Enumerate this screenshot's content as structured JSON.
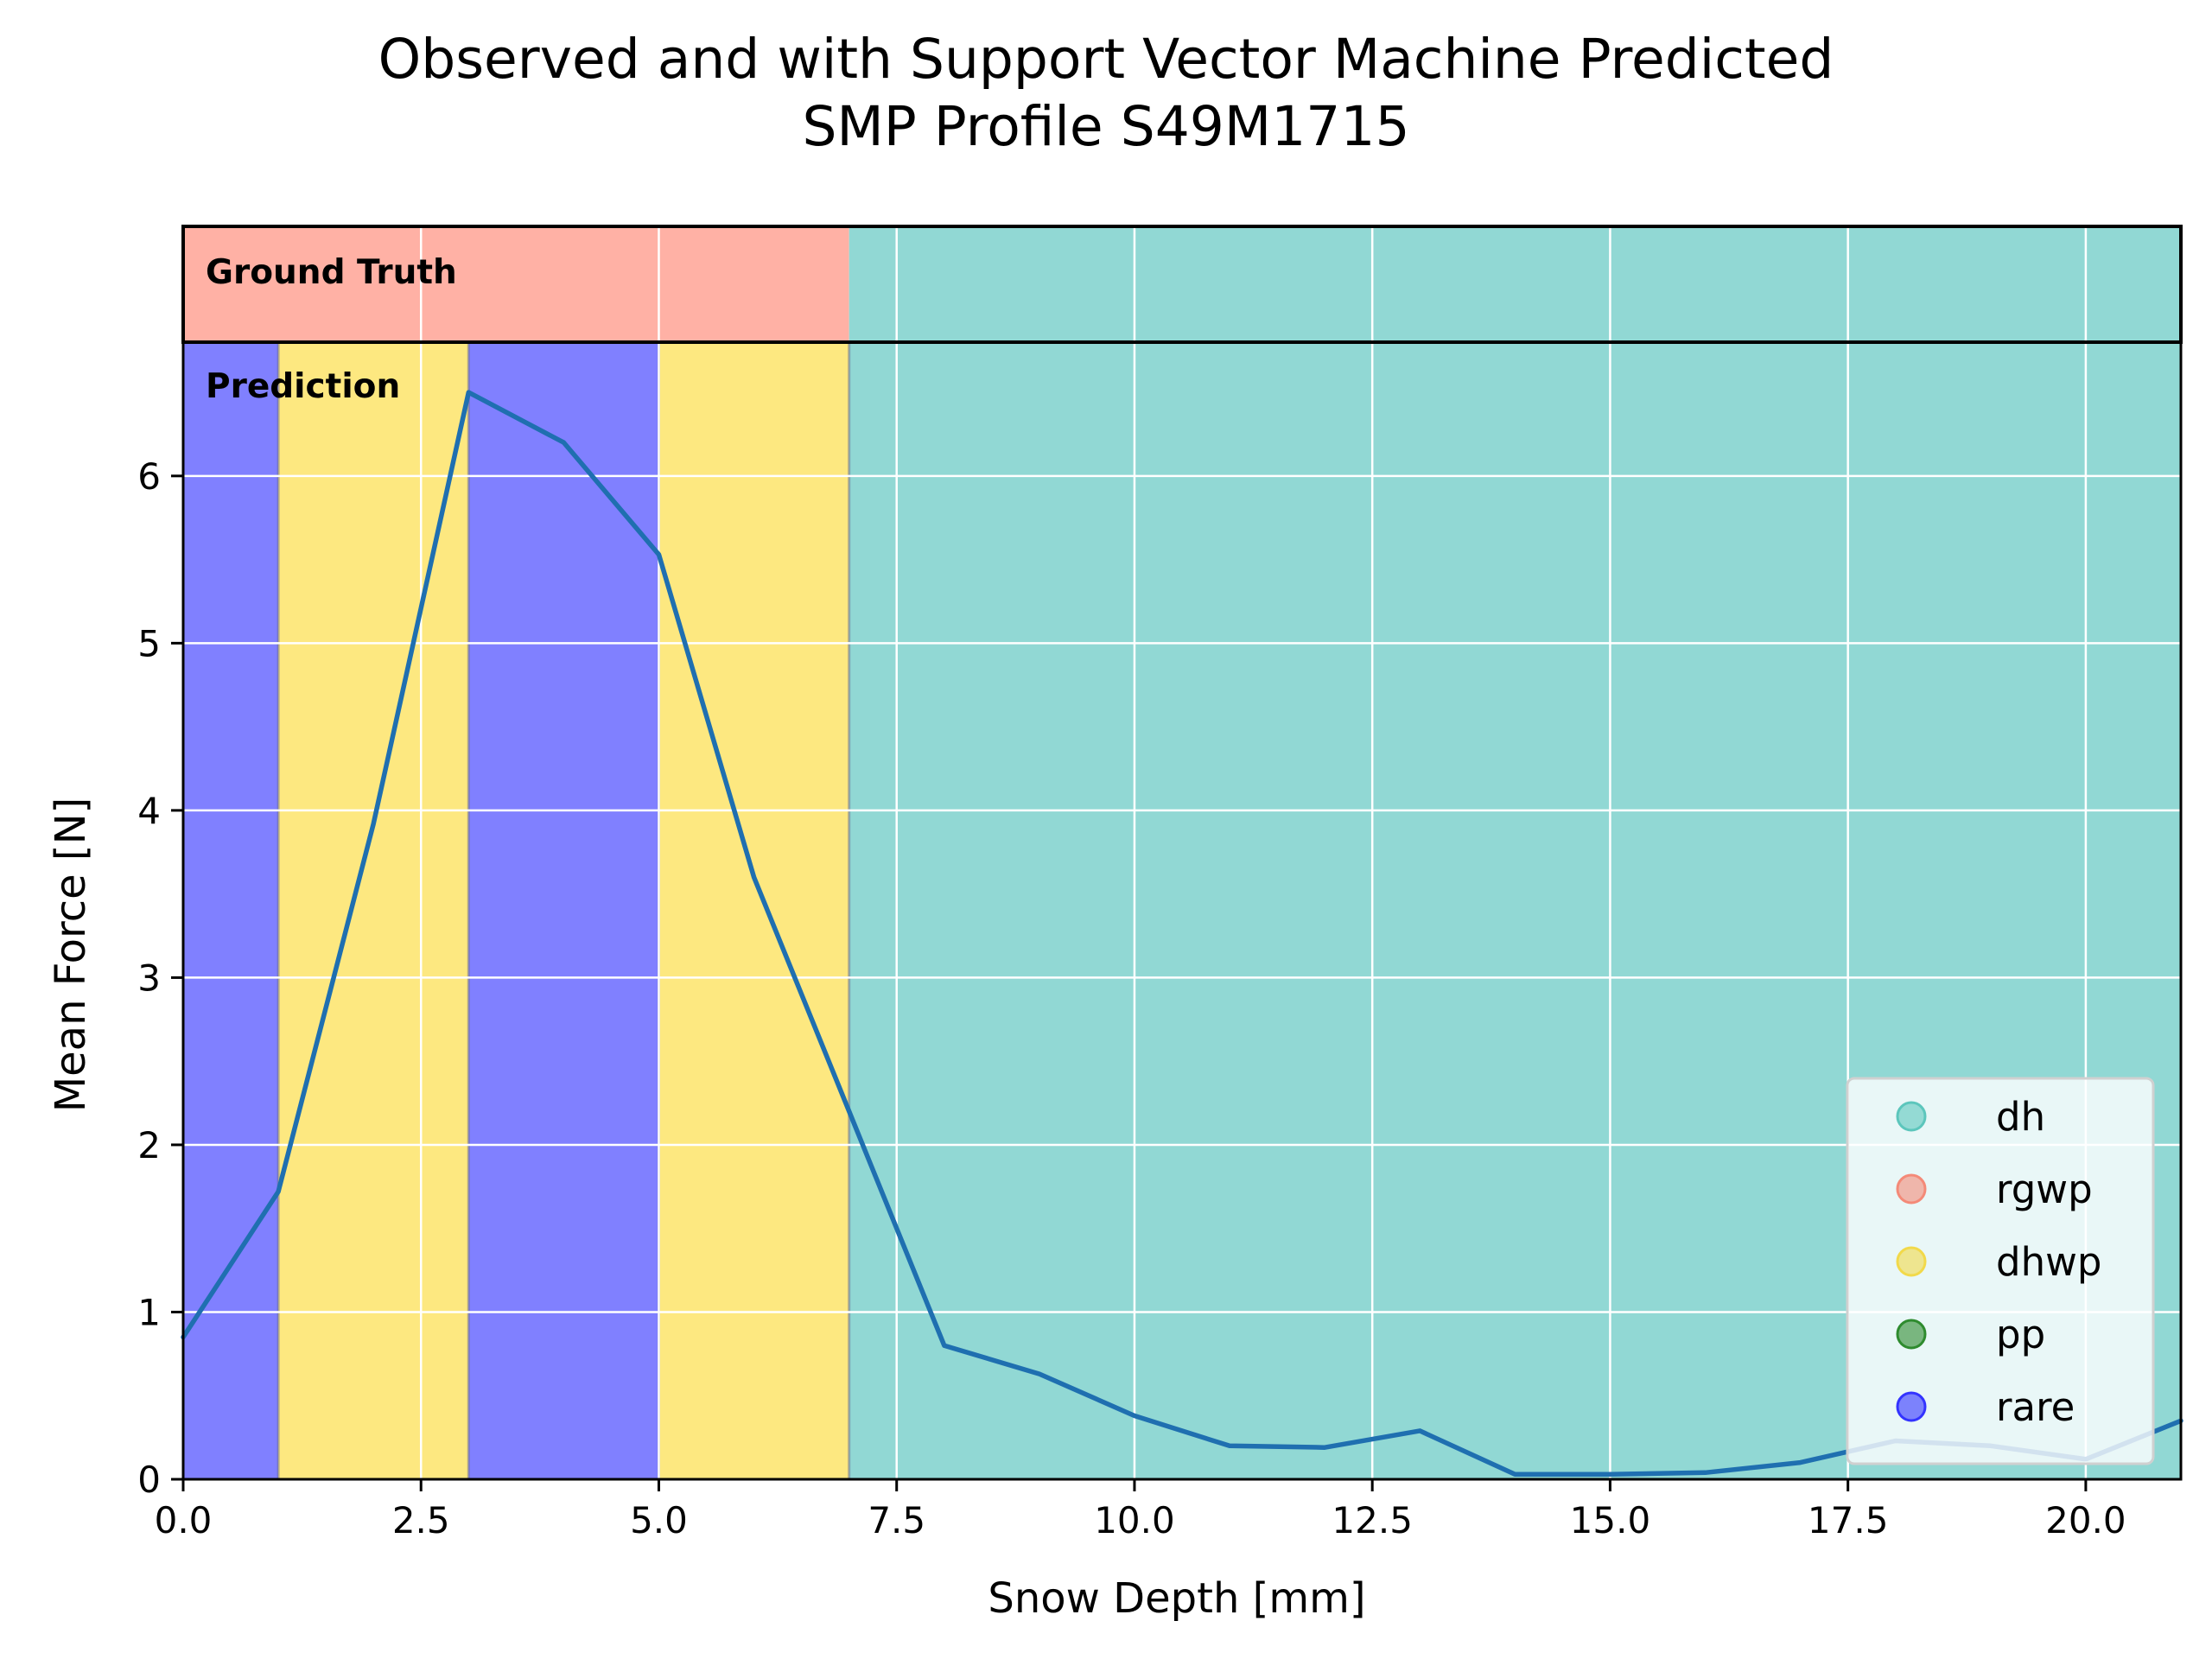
{
  "chart_data": {
    "type": "line",
    "title": "Observed and with Support Vector Machine Predicted",
    "subtitle": "SMP Profile S49M1715",
    "xlabel": "Snow Depth [mm]",
    "ylabel": "Mean Force [N]",
    "xlim": [
      0,
      21
    ],
    "ylim": [
      0,
      6.8
    ],
    "x_ticks": [
      0,
      2.5,
      5,
      7.5,
      10,
      12.5,
      15,
      17.5,
      20
    ],
    "x_tick_labels": [
      "0.0",
      "2.5",
      "5.0",
      "7.5",
      "10.0",
      "12.5",
      "15.0",
      "17.5",
      "20.0"
    ],
    "y_ticks": [
      0,
      1,
      2,
      3,
      4,
      5,
      6
    ],
    "y_tick_labels": [
      "0",
      "1",
      "2",
      "3",
      "4",
      "5",
      "6"
    ],
    "grid": true,
    "legend_position": "bottom-right",
    "line_color": "#1f6fb0",
    "series": [
      {
        "x": [
          0,
          1,
          2,
          3,
          4,
          5,
          6,
          7,
          8,
          9,
          10,
          11,
          12,
          13,
          14,
          15,
          16,
          17,
          18,
          19,
          20,
          21
        ],
        "y": [
          0.85,
          1.72,
          3.92,
          6.5,
          6.2,
          5.53,
          3.6,
          2.2,
          0.8,
          0.63,
          0.38,
          0.2,
          0.19,
          0.29,
          0.03,
          0.03,
          0.04,
          0.1,
          0.23,
          0.2,
          0.12,
          0.35
        ]
      }
    ],
    "ground_truth_label": "Ground Truth",
    "prediction_label": "Prediction",
    "ground_truth_segments": [
      {
        "start": 0,
        "end": 7,
        "class": "rgwp"
      },
      {
        "start": 7,
        "end": 21,
        "class": "dh"
      }
    ],
    "prediction_segments": [
      {
        "start": 0,
        "end": 1,
        "class": "rare"
      },
      {
        "start": 1,
        "end": 3,
        "class": "dhwp"
      },
      {
        "start": 3,
        "end": 5,
        "class": "rare"
      },
      {
        "start": 5,
        "end": 7,
        "class": "dhwp"
      },
      {
        "start": 7,
        "end": 21,
        "class": "dh"
      }
    ],
    "legend": [
      {
        "label": "dh",
        "color": "#5cc6bc"
      },
      {
        "label": "rgwp",
        "color": "#f48a78"
      },
      {
        "label": "dhwp",
        "color": "#f2d94a"
      },
      {
        "label": "pp",
        "color": "#2e8b2e"
      },
      {
        "label": "rare",
        "color": "#3333ff"
      }
    ],
    "class_colors": {
      "dh": "#91d8d4",
      "rgwp": "#ffb1a5",
      "dhwp": "#fde880",
      "pp": "#7fbf7f",
      "rare": "#8080ff"
    }
  }
}
